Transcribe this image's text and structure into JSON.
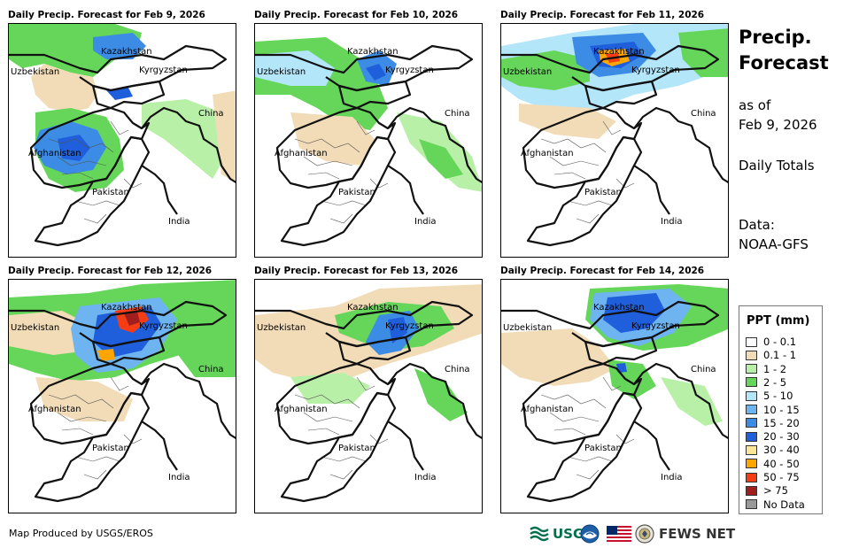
{
  "panels": [
    {
      "title": "Daily Precip. Forecast for Feb 9, 2026"
    },
    {
      "title": "Daily Precip. Forecast for Feb 10, 2026"
    },
    {
      "title": "Daily Precip. Forecast for Feb 11, 2026"
    },
    {
      "title": "Daily Precip. Forecast for Feb 12, 2026"
    },
    {
      "title": "Daily Precip. Forecast for Feb 13, 2026"
    },
    {
      "title": "Daily Precip. Forecast for Feb 14, 2026"
    }
  ],
  "map_labels": {
    "kazakhstan": "Kazakhstan",
    "uzbekistan": "Uzbekistan",
    "kyrgyzstan": "Kyrgyzstan",
    "china": "China",
    "afghanistan": "Afghanistan",
    "pakistan": "Pakistan",
    "india": "India"
  },
  "sidebar": {
    "title_line1": "Precip.",
    "title_line2": "Forecast",
    "asof_line1": "as of",
    "asof_line2": "Feb 9, 2026",
    "totals": "Daily Totals",
    "data_line1": "Data:",
    "data_line2": "NOAA-GFS"
  },
  "legend": {
    "title": "PPT (mm)",
    "items": [
      {
        "label": "0 - 0.1",
        "color": "#ffffff"
      },
      {
        "label": "0.1 - 1",
        "color": "#f2dcb8"
      },
      {
        "label": "1 - 2",
        "color": "#b8f0a8"
      },
      {
        "label": "2 - 5",
        "color": "#66d65a"
      },
      {
        "label": "5 - 10",
        "color": "#b4e6fa"
      },
      {
        "label": "10 - 15",
        "color": "#6eb4f0"
      },
      {
        "label": "15 - 20",
        "color": "#3c8ce6"
      },
      {
        "label": "20 - 30",
        "color": "#1f5fdc"
      },
      {
        "label": "30 - 40",
        "color": "#fae696"
      },
      {
        "label": "40 - 50",
        "color": "#ffa500"
      },
      {
        "label": "50 - 75",
        "color": "#f53c14"
      },
      {
        "label": "> 75",
        "color": "#a01e1e"
      },
      {
        "label": "No Data",
        "color": "#999999"
      }
    ]
  },
  "footer": {
    "produced_by": "Map Produced by USGS/EROS",
    "usgs": "USGS",
    "fews": "FEWS NET"
  }
}
